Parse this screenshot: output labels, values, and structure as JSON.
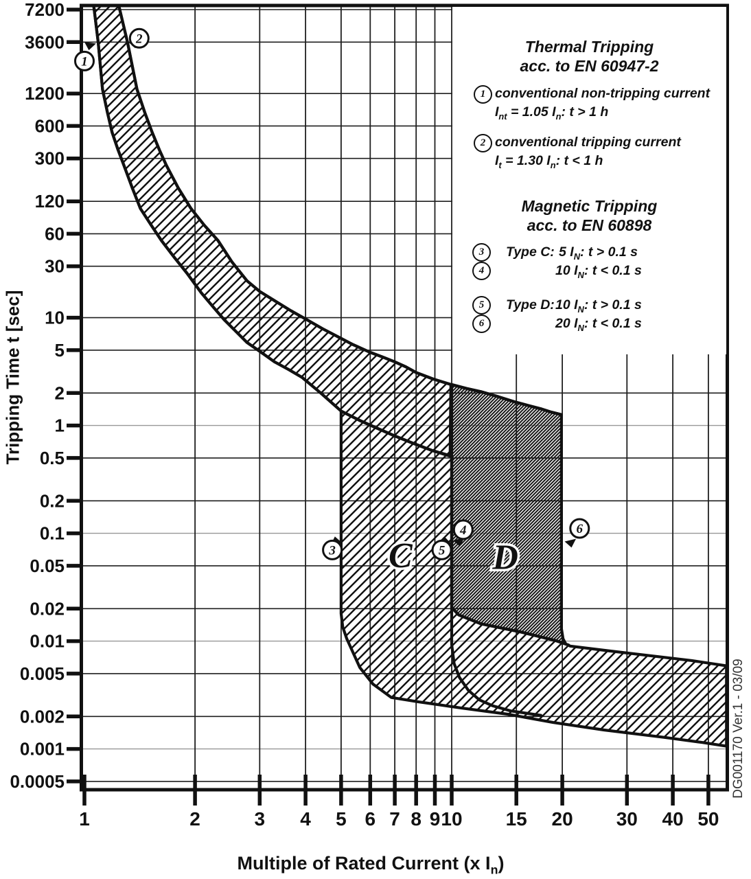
{
  "side_caption": "DG001170 Ver.1 - 03/09",
  "axes": {
    "y": {
      "label": "Tripping Time t [sec]"
    },
    "x": {
      "label": "Multiple of Rated Current (x I_{n})"
    }
  },
  "legend": {
    "thermal": {
      "title": "Thermal Tripping",
      "subtitle": "acc. to EN 60947-2",
      "items": [
        {
          "num": "1",
          "line1": "conventional non-tripping current",
          "line2": "I_{nt}  = 1.05 I_{n}:  t > 1 h"
        },
        {
          "num": "2",
          "line1": "conventional tripping current",
          "line2": "I_{t}  = 1.30 I_{n}:  t < 1 h"
        }
      ]
    },
    "magnetic": {
      "title": "Magnetic Tripping",
      "subtitle": "acc. to EN 60898",
      "rows": [
        {
          "num": "3",
          "type": "Type C:",
          "formula": "5 I_{N}: t > 0.1 s"
        },
        {
          "num": "4",
          "type": "",
          "formula": "10 I_{N}: t < 0.1 s"
        },
        {
          "num": "5",
          "type": "Type D:",
          "formula": "10 I_{N}: t > 0.1 s"
        },
        {
          "num": "6",
          "type": "",
          "formula": "20 I_{N}: t < 0.1 s"
        }
      ]
    }
  },
  "colors": {
    "line": "#111111",
    "grid": "#1f1f1f",
    "grid_light": "#979797",
    "text": "#111111",
    "background": "#ffffff"
  },
  "chart_data": {
    "type": "area",
    "title": "",
    "xlabel": "Multiple of Rated Current (x In)",
    "ylabel": "Tripping Time t [sec]",
    "x_scale": "log",
    "y_scale": "log",
    "xlim": [
      1,
      56
    ],
    "ylim": [
      0.0004,
      7860
    ],
    "grid": true,
    "legend_position": "top-right",
    "x_ticks": [
      1,
      2,
      3,
      4,
      5,
      6,
      7,
      8,
      9,
      10,
      15,
      20,
      30,
      40,
      50
    ],
    "y_ticks": [
      7200,
      3600,
      1200,
      600,
      300,
      120,
      60,
      30,
      10,
      5,
      2,
      1,
      0.5,
      0.2,
      0.1,
      0.05,
      0.02,
      0.01,
      0.005,
      0.002,
      0.001,
      0.0005
    ],
    "y_gray_gridlines": [
      1,
      0.1,
      0.01,
      0.001
    ],
    "series": [
      {
        "name": "thermal_lower_boundary",
        "points": [
          [
            1.06,
            7860
          ],
          [
            1.09,
            3600
          ],
          [
            1.12,
            1318
          ],
          [
            1.155,
            800
          ],
          [
            1.19,
            521
          ],
          [
            1.235,
            360
          ],
          [
            1.28,
            260
          ],
          [
            1.35,
            160
          ],
          [
            1.42,
            103
          ],
          [
            1.52,
            72
          ],
          [
            1.62,
            52
          ],
          [
            1.76,
            36
          ],
          [
            1.9,
            26
          ],
          [
            2.08,
            17
          ],
          [
            2.24,
            12.6
          ],
          [
            2.4,
            9.6
          ],
          [
            2.58,
            7.5
          ],
          [
            2.77,
            5.9
          ],
          [
            3.02,
            4.8
          ],
          [
            3.29,
            3.9
          ],
          [
            3.6,
            3.3
          ],
          [
            3.91,
            2.8
          ],
          [
            4.4,
            2.0
          ],
          [
            5.0,
            1.36
          ],
          [
            5.6,
            1.12
          ],
          [
            6.28,
            0.94
          ],
          [
            7.0,
            0.8
          ],
          [
            7.8,
            0.69
          ],
          [
            8.8,
            0.59
          ],
          [
            9.9,
            0.52
          ]
        ]
      },
      {
        "name": "thermal_upper_boundary",
        "points": [
          [
            1.24,
            7860
          ],
          [
            1.31,
            3600
          ],
          [
            1.39,
            1318
          ],
          [
            1.46,
            800
          ],
          [
            1.53,
            521
          ],
          [
            1.6,
            360
          ],
          [
            1.67,
            260
          ],
          [
            1.8,
            160
          ],
          [
            1.95,
            103
          ],
          [
            2.12,
            72
          ],
          [
            2.31,
            52
          ],
          [
            2.52,
            33
          ],
          [
            2.77,
            22
          ],
          [
            3.0,
            17.5
          ],
          [
            3.29,
            14.4
          ],
          [
            3.65,
            11.6
          ],
          [
            4.03,
            9.6
          ],
          [
            4.45,
            7.9
          ],
          [
            4.92,
            6.6
          ],
          [
            5.4,
            5.6
          ],
          [
            5.97,
            4.8
          ],
          [
            6.5,
            4.3
          ],
          [
            6.99,
            3.9
          ],
          [
            7.5,
            3.5
          ],
          [
            8.0,
            3.1
          ],
          [
            8.9,
            2.7
          ],
          [
            9.95,
            2.4
          ],
          [
            11,
            2.2
          ],
          [
            12,
            2.06
          ],
          [
            13.4,
            1.85
          ],
          [
            14.8,
            1.66
          ],
          [
            16.2,
            1.53
          ],
          [
            17.6,
            1.42
          ],
          [
            18.7,
            1.33
          ],
          [
            19.9,
            1.26
          ]
        ]
      },
      {
        "name": "type_c_inner_corner",
        "points": [
          [
            10,
            0.52
          ],
          [
            10,
            0.0093
          ],
          [
            10.15,
            0.0062
          ],
          [
            10.5,
            0.0046
          ],
          [
            11.1,
            0.0035
          ],
          [
            11.9,
            0.00285
          ],
          [
            12.9,
            0.00252
          ],
          [
            14.5,
            0.00225
          ],
          [
            17.5,
            0.00205
          ]
        ]
      }
    ],
    "regions": [
      {
        "name": "thermal_band",
        "fill": "light-hatch",
        "points": [
          [
            1.06,
            7860
          ],
          [
            1.09,
            3600
          ],
          [
            1.12,
            1318
          ],
          [
            1.155,
            800
          ],
          [
            1.19,
            521
          ],
          [
            1.235,
            360
          ],
          [
            1.28,
            260
          ],
          [
            1.35,
            160
          ],
          [
            1.42,
            103
          ],
          [
            1.52,
            72
          ],
          [
            1.62,
            52
          ],
          [
            1.76,
            36
          ],
          [
            1.9,
            26
          ],
          [
            2.08,
            17
          ],
          [
            2.24,
            12.6
          ],
          [
            2.4,
            9.6
          ],
          [
            2.58,
            7.5
          ],
          [
            2.77,
            5.9
          ],
          [
            3.02,
            4.8
          ],
          [
            3.29,
            3.9
          ],
          [
            3.6,
            3.3
          ],
          [
            3.91,
            2.8
          ],
          [
            4.4,
            2.0
          ],
          [
            5.0,
            1.36
          ],
          [
            5.6,
            1.12
          ],
          [
            6.28,
            0.94
          ],
          [
            7.0,
            0.8
          ],
          [
            7.8,
            0.69
          ],
          [
            8.8,
            0.59
          ],
          [
            9.9,
            0.52
          ],
          [
            9.95,
            2.4
          ],
          [
            8.9,
            2.7
          ],
          [
            8.0,
            3.1
          ],
          [
            7.5,
            3.5
          ],
          [
            6.99,
            3.9
          ],
          [
            6.5,
            4.3
          ],
          [
            5.97,
            4.8
          ],
          [
            5.4,
            5.6
          ],
          [
            4.92,
            6.6
          ],
          [
            4.45,
            7.9
          ],
          [
            4.03,
            9.6
          ],
          [
            3.65,
            11.6
          ],
          [
            3.29,
            14.4
          ],
          [
            3.0,
            17.5
          ],
          [
            2.77,
            22
          ],
          [
            2.52,
            33
          ],
          [
            2.31,
            52
          ],
          [
            2.12,
            72
          ],
          [
            1.95,
            103
          ],
          [
            1.8,
            160
          ],
          [
            1.67,
            260
          ],
          [
            1.6,
            360
          ],
          [
            1.53,
            521
          ],
          [
            1.46,
            800
          ],
          [
            1.39,
            1318
          ],
          [
            1.31,
            3600
          ],
          [
            1.24,
            7860
          ]
        ]
      },
      {
        "name": "type_c_region",
        "fill": "light-hatch",
        "points": [
          [
            5.0,
            1.36
          ],
          [
            5.0,
            0.018
          ],
          [
            5.05,
            0.0135
          ],
          [
            5.18,
            0.0105
          ],
          [
            5.33,
            0.0085
          ],
          [
            5.62,
            0.0057
          ],
          [
            6.1,
            0.004
          ],
          [
            6.85,
            0.003
          ],
          [
            8.1,
            0.00274
          ],
          [
            10.6,
            0.0024
          ],
          [
            14.2,
            0.0021
          ],
          [
            18.9,
            0.00176
          ],
          [
            26,
            0.0015
          ],
          [
            38,
            0.00128
          ],
          [
            48,
            0.00115
          ],
          [
            56,
            0.00106
          ],
          [
            56,
            0.0059
          ],
          [
            45,
            0.0066
          ],
          [
            35,
            0.0073
          ],
          [
            27,
            0.0081
          ],
          [
            21,
            0.009
          ],
          [
            20.8,
            0.0092
          ],
          [
            19.2,
            0.0101
          ],
          [
            15.5,
            0.0121
          ],
          [
            12,
            0.0145
          ],
          [
            10.45,
            0.0175
          ],
          [
            10,
            0.0205
          ],
          [
            10,
            0.52
          ],
          [
            8.8,
            0.59
          ],
          [
            7.8,
            0.69
          ],
          [
            7.0,
            0.8
          ],
          [
            6.28,
            0.94
          ],
          [
            5.6,
            1.12
          ]
        ]
      },
      {
        "name": "type_d_region",
        "fill": "dark-hatch",
        "points": [
          [
            10,
            2.4
          ],
          [
            11,
            2.2
          ],
          [
            12,
            2.06
          ],
          [
            13.4,
            1.85
          ],
          [
            14.8,
            1.66
          ],
          [
            16.2,
            1.53
          ],
          [
            17.6,
            1.42
          ],
          [
            18.7,
            1.33
          ],
          [
            19.9,
            1.26
          ],
          [
            19.9,
            0.013
          ],
          [
            20.1,
            0.0105
          ],
          [
            20.45,
            0.0094
          ],
          [
            20.8,
            0.0092
          ],
          [
            19.2,
            0.0101
          ],
          [
            15.5,
            0.0121
          ],
          [
            12,
            0.0145
          ],
          [
            10.45,
            0.0175
          ],
          [
            10,
            0.0205
          ]
        ]
      }
    ],
    "annotations": {
      "markers": [
        {
          "num": "1",
          "m": 1.0,
          "t": 2400,
          "arrow": {
            "m": 1.0,
            "t": 3600,
            "rot": 35
          }
        },
        {
          "num": "2",
          "m": 1.41,
          "t": 3900,
          "arrow": {
            "m": 1.317,
            "t": 3600,
            "rot": 15
          }
        },
        {
          "num": "3",
          "m": 4.73,
          "t": 0.07,
          "arrow": {
            "m": 5.02,
            "t": 0.082,
            "rot": 195
          }
        },
        {
          "num": "4",
          "m": 10.75,
          "t": 0.108,
          "arrow": {
            "m": 10.08,
            "t": 0.086,
            "rot": 15
          }
        },
        {
          "num": "5",
          "m": 9.4,
          "t": 0.07,
          "arrow": {
            "m": 9.97,
            "t": 0.08,
            "rot": 200
          }
        },
        {
          "num": "6",
          "m": 22.3,
          "t": 0.111,
          "arrow": {
            "m": 20.3,
            "t": 0.084,
            "rot": 15
          }
        }
      ],
      "region_labels": [
        {
          "text": "C",
          "m": 7.25,
          "t": 0.063
        },
        {
          "text": "D",
          "m": 14.0,
          "t": 0.061
        }
      ]
    }
  }
}
